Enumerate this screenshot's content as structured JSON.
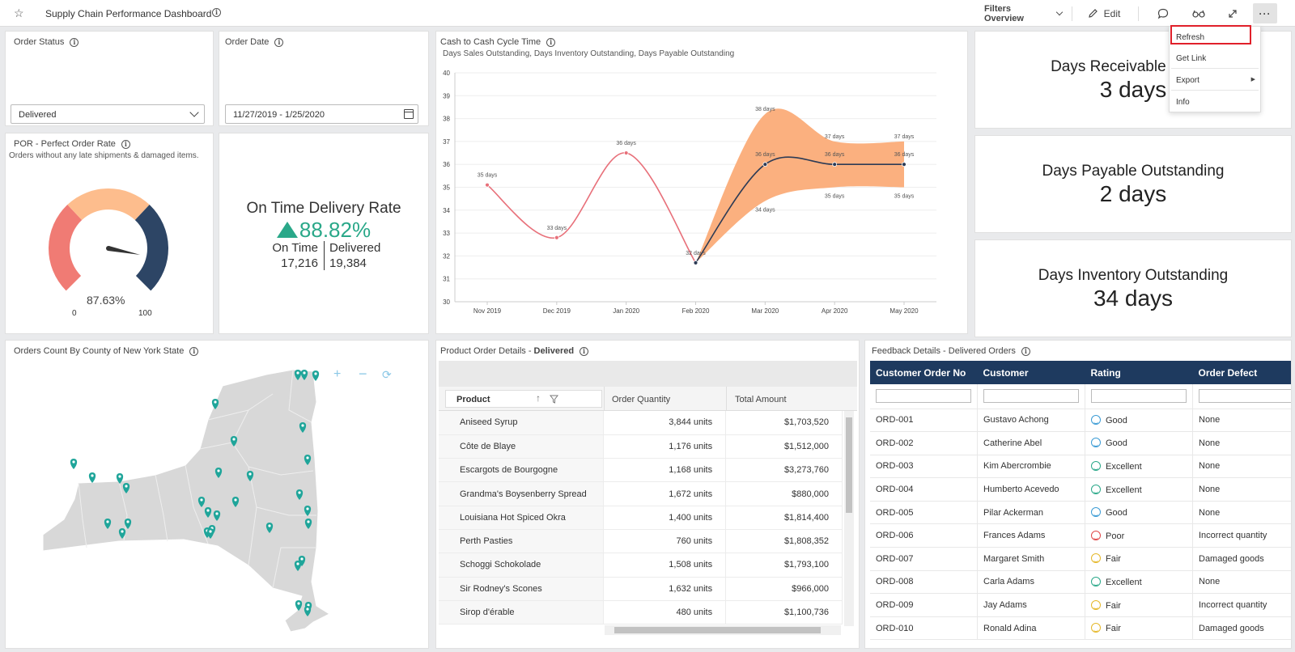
{
  "header": {
    "title": "Supply Chain Performance Dashboard",
    "filters_label": "Filters Overview",
    "edit_label": "Edit"
  },
  "menu": {
    "items": [
      "Refresh",
      "Get Link",
      "Export",
      "Info"
    ],
    "highlighted": "Refresh"
  },
  "order_status": {
    "title": "Order Status",
    "value": "Delivered"
  },
  "order_date": {
    "title": "Order Date",
    "value": "11/27/2019 - 1/25/2020"
  },
  "por": {
    "title": "POR - Perfect Order Rate",
    "subtitle": "Orders without any late shipments & damaged items.",
    "value_label": "87.63%",
    "value": 87.63,
    "min": "0",
    "max": "100",
    "colors": {
      "low": "#f07b74",
      "mid": "#fdbd8d",
      "high": "#2d4565"
    }
  },
  "otd": {
    "title": "On Time Delivery Rate",
    "value": "88.82%",
    "ontime_label": "On Time",
    "ontime_value": "17,216",
    "delivered_label": "Delivered",
    "delivered_value": "19,384",
    "color": "#2aa889"
  },
  "c2c": {
    "title": "Cash to Cash Cycle Time",
    "subtitle": "Days Sales Outstanding, Days Inventory Outstanding, Days Payable Outstanding"
  },
  "chart_data": {
    "type": "line",
    "x": [
      "Nov 2019",
      "Dec 2019",
      "Jan 2020",
      "Feb 2020",
      "Mar 2020",
      "Apr 2020",
      "May 2020"
    ],
    "ylim": [
      30,
      40
    ],
    "yticks": [
      30,
      31,
      32,
      33,
      34,
      35,
      36,
      37,
      38,
      39,
      40
    ],
    "series": [
      {
        "values": [
          35.1,
          32.8,
          36.5,
          31.7,
          null,
          null,
          null
        ],
        "labels": [
          "35 days",
          "33 days",
          "36 days",
          "32 days",
          "",
          "",
          ""
        ],
        "color": "#e8707a"
      },
      {
        "values": [
          null,
          null,
          null,
          31.7,
          36.0,
          36.0,
          36.0
        ],
        "labels": [
          "",
          "",
          "",
          "",
          "36 days",
          "36 days",
          "36 days"
        ],
        "color": "#2d3b55"
      }
    ],
    "band": {
      "upper": [
        null,
        null,
        null,
        31.7,
        38.2,
        37.0,
        37.0
      ],
      "lower": [
        null,
        null,
        null,
        31.7,
        34.4,
        35.0,
        35.0
      ],
      "upper_labels": [
        "",
        "",
        "",
        "",
        "38 days",
        "37 days",
        "37 days"
      ],
      "lower_labels": [
        "",
        "",
        "",
        "",
        "34 days",
        "35 days",
        "35 days"
      ],
      "color": "#fbb07f"
    }
  },
  "kpis": [
    {
      "title": "Days Receivable Outsta",
      "value": "3 days"
    },
    {
      "title": "Days Payable Outstanding",
      "value": "2 days"
    },
    {
      "title": "Days Inventory Outstanding",
      "value": "34 days"
    }
  ],
  "map": {
    "title": "Orders Count By County of New York State",
    "marker_color": "#1fa59a"
  },
  "products": {
    "title_prefix": "Product Order Details - ",
    "title_bold": "Delivered",
    "columns": [
      "Product",
      "Order Quantity",
      "Total Amount"
    ],
    "rows": [
      [
        "Aniseed Syrup",
        "3,844 units",
        "$1,703,520"
      ],
      [
        "Côte de Blaye",
        "1,176 units",
        "$1,512,000"
      ],
      [
        "Escargots de Bourgogne",
        "1,168 units",
        "$3,273,760"
      ],
      [
        "Grandma's Boysenberry Spread",
        "1,672 units",
        "$880,000"
      ],
      [
        "Louisiana Hot Spiced Okra",
        "1,400 units",
        "$1,814,400"
      ],
      [
        "Perth Pasties",
        "760 units",
        "$1,808,352"
      ],
      [
        "Schoggi Schokolade",
        "1,508 units",
        "$1,793,100"
      ],
      [
        "Sir Rodney's Scones",
        "1,632 units",
        "$966,000"
      ],
      [
        "Sirop d'érable",
        "480 units",
        "$1,100,736"
      ]
    ]
  },
  "feedback": {
    "title": "Feedback Details - Delivered Orders",
    "columns": [
      "Customer Order No",
      "Customer",
      "Rating",
      "Order Defect"
    ],
    "rows": [
      [
        "ORD-001",
        "Gustavo Achong",
        "Good",
        "None"
      ],
      [
        "ORD-002",
        "Catherine Abel",
        "Good",
        "None"
      ],
      [
        "ORD-003",
        "Kim Abercrombie",
        "Excellent",
        "None"
      ],
      [
        "ORD-004",
        "Humberto Acevedo",
        "Excellent",
        "None"
      ],
      [
        "ORD-005",
        "Pilar Ackerman",
        "Good",
        "None"
      ],
      [
        "ORD-006",
        "Frances Adams",
        "Poor",
        "Incorrect quantity"
      ],
      [
        "ORD-007",
        "Margaret Smith",
        "Fair",
        "Damaged goods"
      ],
      [
        "ORD-008",
        "Carla Adams",
        "Excellent",
        "None"
      ],
      [
        "ORD-009",
        "Jay Adams",
        "Fair",
        "Incorrect quantity"
      ],
      [
        "ORD-010",
        "Ronald Adina",
        "Fair",
        "Damaged goods"
      ]
    ],
    "rating_colors": {
      "Good": "#3a9bd5",
      "Excellent": "#2aa889",
      "Poor": "#e04848",
      "Fair": "#e5b82a"
    }
  }
}
